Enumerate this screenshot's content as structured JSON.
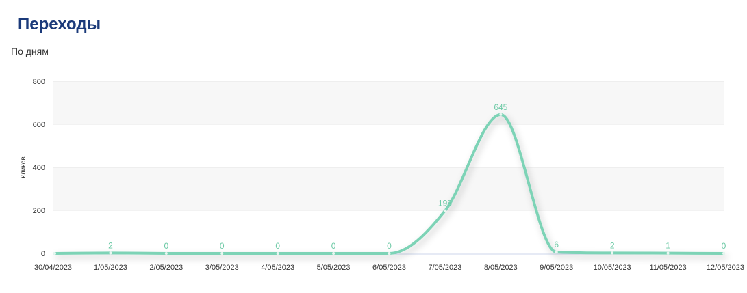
{
  "header": {
    "title": "Переходы",
    "subtitle": "По дням"
  },
  "colors": {
    "line": "#7dd3b6",
    "label": "#6cc9a5",
    "band": "#f7f7f7",
    "grid": "#e6e6e6",
    "axis": "#ccd6eb",
    "title": "#1b3a7a"
  },
  "chart_data": {
    "type": "line",
    "title": "Переходы",
    "subtitle": "По дням",
    "xlabel": "",
    "ylabel": "кликов",
    "ylim": [
      0,
      800
    ],
    "yticks": [
      0,
      200,
      400,
      600,
      800
    ],
    "grid": true,
    "categories": [
      "30/04/2023",
      "1/05/2023",
      "2/05/2023",
      "3/05/2023",
      "4/05/2023",
      "5/05/2023",
      "6/05/2023",
      "7/05/2023",
      "8/05/2023",
      "9/05/2023",
      "10/05/2023",
      "11/05/2023",
      "12/05/2023"
    ],
    "series": [
      {
        "values": [
          0,
          2,
          0,
          0,
          0,
          0,
          0,
          198,
          645,
          6,
          2,
          1,
          0
        ]
      }
    ],
    "data_labels": [
      "",
      "2",
      "0",
      "0",
      "0",
      "0",
      "0",
      "198",
      "645",
      "6",
      "2",
      "1",
      "0"
    ]
  }
}
